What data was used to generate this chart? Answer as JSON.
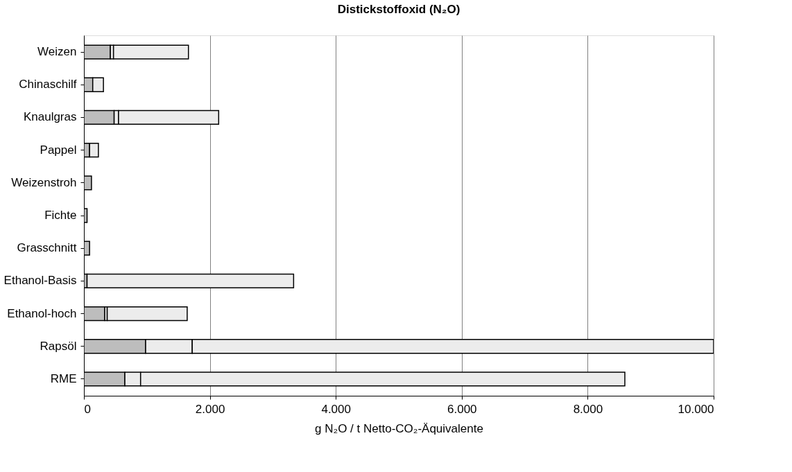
{
  "chart_data": {
    "type": "bar",
    "orientation": "horizontal",
    "stacked": true,
    "title": "Distickstoffoxid (N₂O)",
    "xlabel": "g N₂O / t Netto-CO₂-Äquivalente",
    "categories": [
      "Weizen",
      "Chinaschilf",
      "Knaulgras",
      "Pappel",
      "Weizenstroh",
      "Fichte",
      "Grasschnitt",
      "Ethanol-Basis",
      "Ethanol-hoch",
      "Rapsöl",
      "RME"
    ],
    "series": [
      {
        "color": "#bdbdbd",
        "values": [
          420,
          140,
          480,
          90,
          120,
          50,
          90,
          50,
          330,
          980,
          650
        ]
      },
      {
        "color": "#ececec",
        "values": [
          50,
          null,
          70,
          null,
          null,
          null,
          null,
          null,
          40,
          740,
          250
        ]
      },
      {
        "color": "#ececec",
        "values": [
          1190,
          170,
          1590,
          140,
          null,
          null,
          null,
          3280,
          1270,
          8280,
          7690
        ]
      }
    ],
    "xlim": [
      0,
      10000
    ],
    "xticks": [
      0,
      {
        "value": 2000,
        "label": "2.000"
      },
      {
        "value": 4000,
        "label": "4.000"
      },
      {
        "value": 6000,
        "label": "6.000"
      },
      {
        "value": 8000,
        "label": "8.000"
      },
      {
        "value": 10000,
        "label": "10.000"
      }
    ],
    "grid": "x",
    "legend": false
  }
}
